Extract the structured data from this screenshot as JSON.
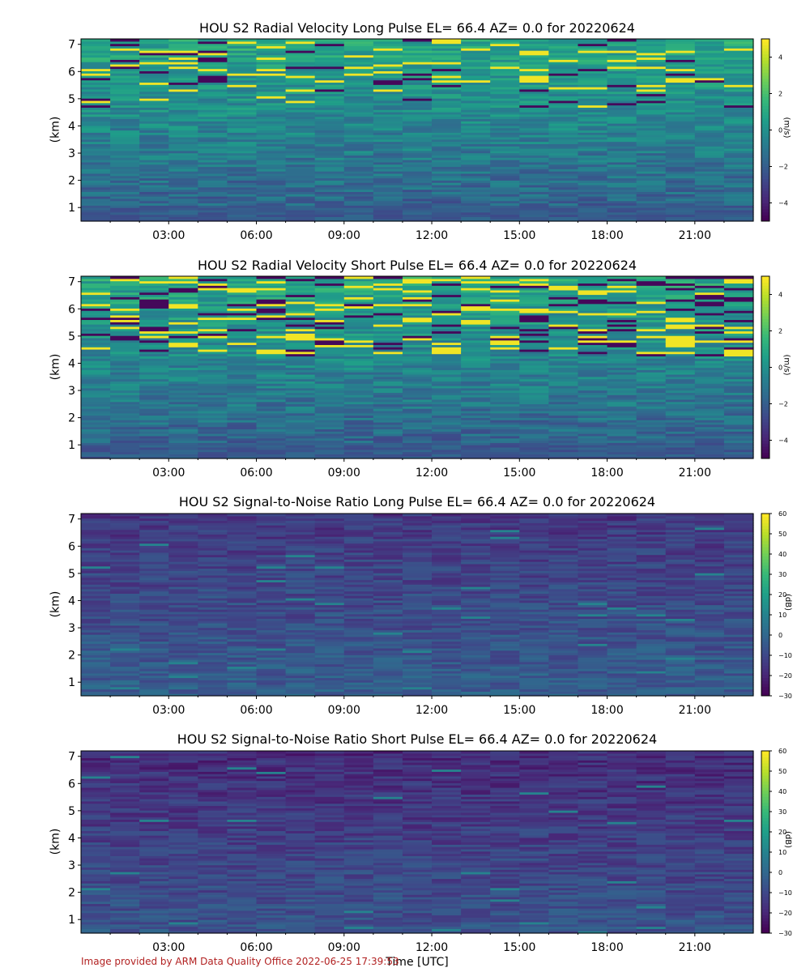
{
  "figure": {
    "footer": "Image provided by ARM Data Quality Office 2022-06-25 17:39:53",
    "xlabel": "Time [UTC]"
  },
  "chart_data": [
    {
      "type": "heatmap",
      "title": "HOU S2 Radial Velocity Long Pulse EL= 66.4 AZ= 0.0 for 20220624",
      "ylabel": "(km)",
      "colorbar_label": "(m/s)",
      "x_ticks": [
        "03:00",
        "06:00",
        "09:00",
        "12:00",
        "15:00",
        "18:00",
        "21:00"
      ],
      "x_tick_hours": [
        3,
        6,
        9,
        12,
        15,
        18,
        21
      ],
      "xlim_hours": [
        0,
        23
      ],
      "y_ticks": [
        1,
        2,
        3,
        4,
        5,
        6,
        7
      ],
      "ylim": [
        0.5,
        7.2
      ],
      "color_ticks": [
        -4,
        -2,
        0,
        2,
        4
      ],
      "clim": [
        -5,
        5
      ],
      "colormap": "viridis"
    },
    {
      "type": "heatmap",
      "title": "HOU S2 Radial Velocity Short Pulse EL= 66.4 AZ= 0.0 for 20220624",
      "ylabel": "(km)",
      "colorbar_label": "(m/s)",
      "x_ticks": [
        "03:00",
        "06:00",
        "09:00",
        "12:00",
        "15:00",
        "18:00",
        "21:00"
      ],
      "x_tick_hours": [
        3,
        6,
        9,
        12,
        15,
        18,
        21
      ],
      "xlim_hours": [
        0,
        23
      ],
      "y_ticks": [
        1,
        2,
        3,
        4,
        5,
        6,
        7
      ],
      "ylim": [
        0.5,
        7.2
      ],
      "color_ticks": [
        -4,
        -2,
        0,
        2,
        4
      ],
      "clim": [
        -5,
        5
      ],
      "colormap": "viridis"
    },
    {
      "type": "heatmap",
      "title": "HOU S2 Signal-to-Noise Ratio Long Pulse EL= 66.4 AZ= 0.0 for 20220624",
      "ylabel": "(km)",
      "colorbar_label": "(dB)",
      "x_ticks": [
        "03:00",
        "06:00",
        "09:00",
        "12:00",
        "15:00",
        "18:00",
        "21:00"
      ],
      "x_tick_hours": [
        3,
        6,
        9,
        12,
        15,
        18,
        21
      ],
      "xlim_hours": [
        0,
        23
      ],
      "y_ticks": [
        1,
        2,
        3,
        4,
        5,
        6,
        7
      ],
      "ylim": [
        0.5,
        7.2
      ],
      "color_ticks": [
        -30,
        -20,
        -10,
        0,
        10,
        20,
        30,
        40,
        50,
        60
      ],
      "clim": [
        -30,
        60
      ],
      "colormap": "viridis"
    },
    {
      "type": "heatmap",
      "title": "HOU S2 Signal-to-Noise Ratio Short Pulse EL= 66.4 AZ= 0.0 for 20220624",
      "ylabel": "(km)",
      "colorbar_label": "(dB)",
      "x_ticks": [
        "03:00",
        "06:00",
        "09:00",
        "12:00",
        "15:00",
        "18:00",
        "21:00"
      ],
      "x_tick_hours": [
        3,
        6,
        9,
        12,
        15,
        18,
        21
      ],
      "xlim_hours": [
        0,
        23
      ],
      "y_ticks": [
        1,
        2,
        3,
        4,
        5,
        6,
        7
      ],
      "ylim": [
        0.5,
        7.2
      ],
      "color_ticks": [
        -30,
        -20,
        -10,
        0,
        10,
        20,
        30,
        40,
        50,
        60
      ],
      "clim": [
        -30,
        60
      ],
      "colormap": "viridis"
    }
  ]
}
